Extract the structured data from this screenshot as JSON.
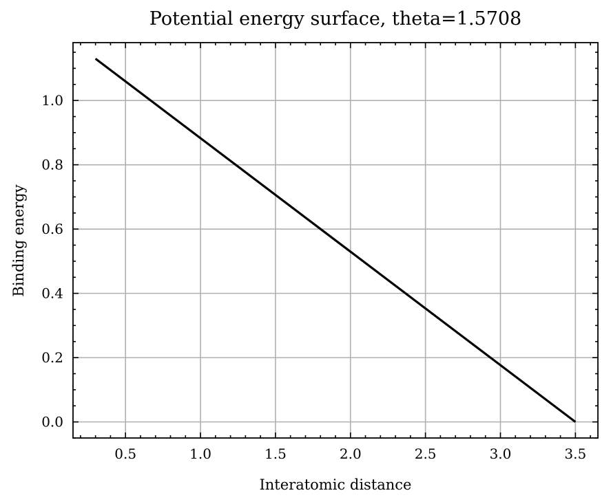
{
  "chart_data": {
    "type": "line",
    "title": "Potential energy surface, theta=1.5708",
    "xlabel": "Interatomic distance",
    "ylabel": "Binding energy",
    "xlim": [
      0.15,
      3.65
    ],
    "ylim": [
      -0.05,
      1.18
    ],
    "xticks": [
      0.5,
      1.0,
      1.5,
      2.0,
      2.5,
      3.0,
      3.5
    ],
    "xtick_labels": [
      "0.5",
      "1.0",
      "1.5",
      "2.0",
      "2.5",
      "3.0",
      "3.5"
    ],
    "yticks": [
      0.0,
      0.2,
      0.4,
      0.6,
      0.8,
      1.0
    ],
    "ytick_labels": [
      "0.0",
      "0.2",
      "0.4",
      "0.6",
      "0.8",
      "1.0"
    ],
    "x_minor_step": 0.1,
    "y_minor_step": 0.05,
    "grid": true,
    "series": [
      {
        "x": [
          0.3,
          3.5
        ],
        "y": [
          1.13,
          0.0
        ],
        "color": "#000000"
      }
    ]
  }
}
